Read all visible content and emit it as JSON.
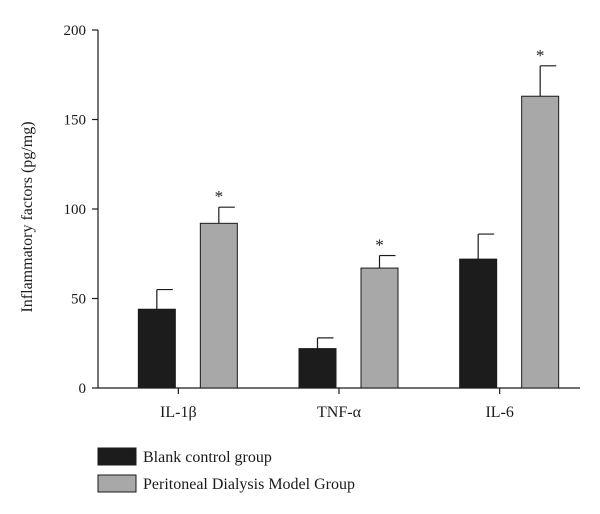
{
  "chart_data": {
    "type": "bar",
    "categories": [
      "IL-1β",
      "TNF-α",
      "IL-6"
    ],
    "series": [
      {
        "name": "Blank control group",
        "values": [
          44,
          22,
          72
        ],
        "errors": [
          11,
          6,
          14
        ],
        "color": "#1c1c1c",
        "significance": [
          "",
          "",
          ""
        ]
      },
      {
        "name": "Peritoneal Dialysis Model Group",
        "values": [
          92,
          67,
          163
        ],
        "errors": [
          9,
          7,
          17
        ],
        "color": "#a8a8a8",
        "significance": [
          "*",
          "*",
          "*"
        ]
      }
    ],
    "title": "",
    "xlabel": "",
    "ylabel": "Inflammatory factors (pg/mg)",
    "ylim": [
      0,
      200
    ],
    "yticks": [
      0,
      50,
      100,
      150,
      200
    ],
    "ytick_labels": [
      "0",
      "50",
      "100",
      "150",
      "200"
    ],
    "grid": false,
    "legend_position": "bottom-left"
  }
}
